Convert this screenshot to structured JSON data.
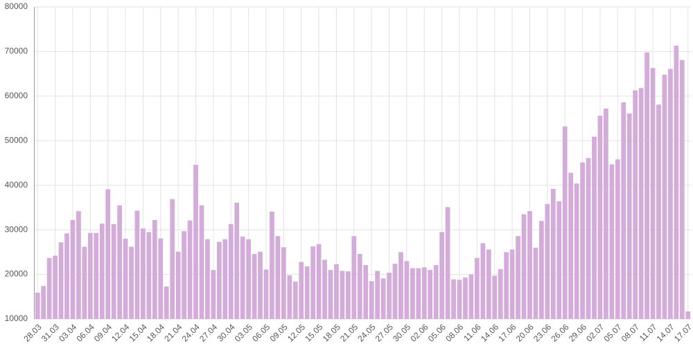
{
  "chart_data": {
    "type": "bar",
    "categories": [
      "28.03",
      null,
      null,
      "31.03",
      null,
      null,
      "03.04",
      null,
      null,
      "06.04",
      null,
      null,
      "09.04",
      null,
      null,
      "12.04",
      null,
      null,
      "15.04",
      null,
      null,
      "18.04",
      null,
      null,
      "21.04",
      null,
      null,
      "24.04",
      null,
      null,
      "27.04",
      null,
      null,
      "30.04",
      null,
      null,
      "03.05",
      null,
      null,
      "06.05",
      null,
      null,
      "09.05",
      null,
      null,
      "12.05",
      null,
      null,
      "15.05",
      null,
      null,
      "18.05",
      null,
      null,
      "21.05",
      null,
      null,
      "24.05",
      null,
      null,
      "27.05",
      null,
      null,
      "30.05",
      null,
      null,
      "02.06",
      null,
      null,
      "05.06",
      null,
      null,
      "08.06",
      null,
      null,
      "11.06",
      null,
      null,
      "14.06",
      null,
      null,
      "17.06",
      null,
      null,
      "20.06",
      null,
      null,
      "23.06",
      null,
      null,
      "26.06",
      null,
      null,
      "29.06",
      null,
      null,
      "02.07",
      null,
      null,
      "05.07",
      null,
      null,
      "08.07",
      null,
      null,
      "11.07",
      null,
      null,
      "14.07",
      null,
      null,
      "17.07"
    ],
    "values": [
      15900,
      17400,
      23700,
      24200,
      27200,
      29200,
      32200,
      34200,
      26200,
      29300,
      29300,
      31400,
      39100,
      31300,
      35500,
      28000,
      26200,
      34300,
      30300,
      29500,
      32200,
      28100,
      17300,
      36900,
      25100,
      29700,
      32100,
      44600,
      35500,
      27900,
      21000,
      27300,
      27900,
      31300,
      36100,
      28500,
      27900,
      24600,
      25100,
      21100,
      34100,
      28600,
      26100,
      19800,
      18400,
      22800,
      21800,
      26300,
      26800,
      23300,
      21000,
      22300,
      20800,
      20700,
      28600,
      24600,
      22100,
      18500,
      20800,
      19100,
      20400,
      22400,
      25000,
      23000,
      21400,
      21400,
      21600,
      21000,
      22100,
      29500,
      35100,
      18900,
      18800,
      19300,
      20000,
      23700,
      27000,
      25600,
      19700,
      21200,
      25000,
      25600,
      28600,
      33500,
      34200,
      26000,
      32000,
      35800,
      39200,
      36400,
      53200,
      42800,
      40400,
      45100,
      46100,
      50900,
      55600,
      57200,
      44700,
      45800,
      58600,
      56100,
      61300,
      61800,
      69800,
      66300,
      58100,
      64800,
      66100,
      71300,
      68100,
      11700
    ],
    "color": "#d4acd9",
    "ylim": [
      10000,
      80000
    ],
    "yticks": [
      10000,
      20000,
      30000,
      40000,
      50000,
      60000,
      70000,
      80000
    ],
    "grid": true
  }
}
